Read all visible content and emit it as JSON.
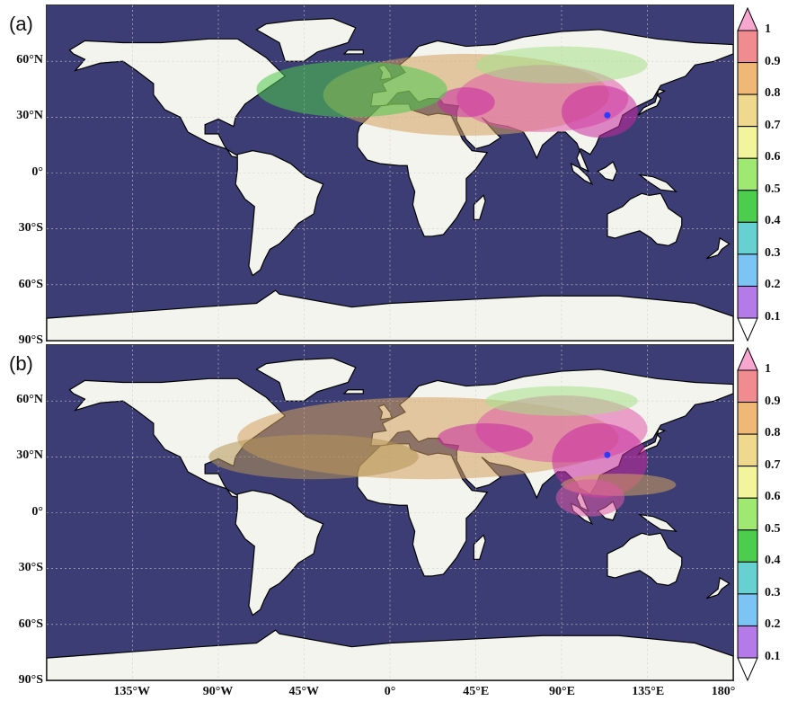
{
  "panels": [
    {
      "label": "(a)",
      "hotspots": [
        {
          "lon": 40,
          "lat": 42,
          "rx": 75,
          "ry": 22,
          "level": 0.8
        },
        {
          "lon": 80,
          "lat": 40,
          "rx": 45,
          "ry": 18,
          "level": 0.9
        },
        {
          "lon": 110,
          "lat": 33,
          "rx": 20,
          "ry": 14,
          "level": 1.0
        },
        {
          "lon": 40,
          "lat": 38,
          "rx": 15,
          "ry": 8,
          "level": 1.0
        },
        {
          "lon": -20,
          "lat": 45,
          "rx": 50,
          "ry": 15,
          "level": 0.5
        },
        {
          "lon": 90,
          "lat": 58,
          "rx": 45,
          "ry": 10,
          "level": 0.6
        }
      ]
    },
    {
      "label": "(b)",
      "hotspots": [
        {
          "lon": 20,
          "lat": 40,
          "rx": 100,
          "ry": 22,
          "level": 0.8
        },
        {
          "lon": 90,
          "lat": 45,
          "rx": 45,
          "ry": 18,
          "level": 0.9
        },
        {
          "lon": 110,
          "lat": 28,
          "rx": 25,
          "ry": 20,
          "level": 1.0
        },
        {
          "lon": 50,
          "lat": 40,
          "rx": 25,
          "ry": 8,
          "level": 1.0
        },
        {
          "lon": 120,
          "lat": 15,
          "rx": 30,
          "ry": 6,
          "level": 0.8
        },
        {
          "lon": -40,
          "lat": 30,
          "rx": 55,
          "ry": 12,
          "level": 0.7
        },
        {
          "lon": 90,
          "lat": 60,
          "rx": 40,
          "ry": 8,
          "level": 0.6
        },
        {
          "lon": 105,
          "lat": 8,
          "rx": 18,
          "ry": 10,
          "level": 0.9
        }
      ]
    }
  ],
  "marker": {
    "lon": 114,
    "lat": 31,
    "color": "#2a3cff"
  },
  "lat_labels": [
    {
      "text": "60°N",
      "lat": 60
    },
    {
      "text": "30°N",
      "lat": 30
    },
    {
      "text": "0°",
      "lat": 0
    },
    {
      "text": "30°S",
      "lat": -30
    },
    {
      "text": "60°S",
      "lat": -60
    },
    {
      "text": "90°S",
      "lat": -90
    }
  ],
  "lon_labels": [
    {
      "text": "135°W",
      "lon": -135
    },
    {
      "text": "90°W",
      "lon": -90
    },
    {
      "text": "45°W",
      "lon": -45
    },
    {
      "text": "0°",
      "lon": 0
    },
    {
      "text": "45°E",
      "lon": 45
    },
    {
      "text": "90°E",
      "lon": 90
    },
    {
      "text": "135°E",
      "lon": 135
    },
    {
      "text": "180°",
      "lon": 180
    }
  ],
  "colorbar": {
    "labels": [
      "1",
      "0.9",
      "0.8",
      "0.7",
      "0.6",
      "0.5",
      "0.4",
      "0.3",
      "0.2",
      "0.1"
    ],
    "colors": [
      "#f7a6cf",
      "#f08b8f",
      "#f0b876",
      "#efd98f",
      "#f3f59d",
      "#9fe872",
      "#4ccd4d",
      "#66d1d0",
      "#7cc4f4",
      "#b47ae8",
      "#ffffff"
    ]
  },
  "colors": {
    "ocean": "#3b3d74",
    "land": "#f4f4ee",
    "border": "#000000",
    "grid": "#cccccc"
  }
}
